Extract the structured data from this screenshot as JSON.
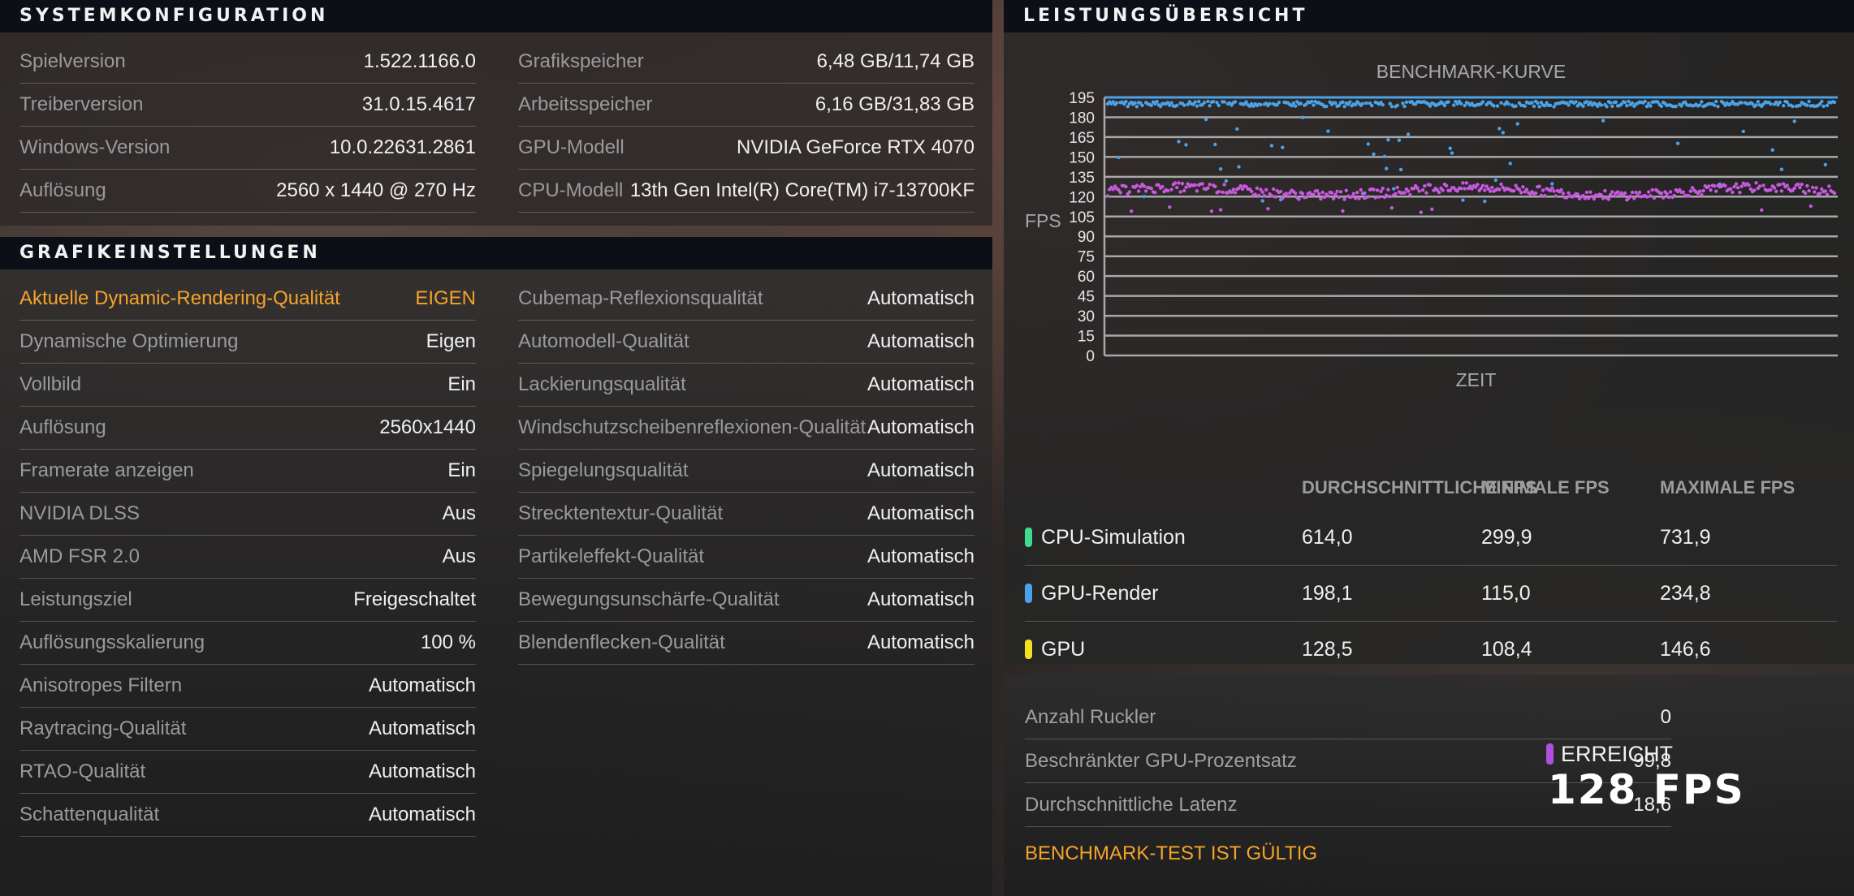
{
  "system": {
    "title": "SYSTEMKONFIGURATION",
    "left": [
      {
        "label": "Spielversion",
        "value": "1.522.1166.0"
      },
      {
        "label": "Treiberversion",
        "value": "31.0.15.4617"
      },
      {
        "label": "Windows-Version",
        "value": "10.0.22631.2861"
      },
      {
        "label": "Auflösung",
        "value": "2560 x 1440 @ 270 Hz"
      }
    ],
    "right": [
      {
        "label": "Grafikspeicher",
        "value": "6,48 GB/11,74 GB"
      },
      {
        "label": "Arbeitsspeicher",
        "value": "6,16 GB/31,83 GB"
      },
      {
        "label": "GPU-Modell",
        "value": "NVIDIA GeForce RTX 4070"
      },
      {
        "label": "CPU-Modell",
        "value": "13th Gen Intel(R) Core(TM) i7-13700KF"
      }
    ]
  },
  "graphics": {
    "title": "GRAFIKEINSTELLUNGEN",
    "left": [
      {
        "label": "Aktuelle Dynamic-Rendering-Qualität",
        "value": "EIGEN"
      },
      {
        "label": "Dynamische Optimierung",
        "value": "Eigen"
      },
      {
        "label": "Vollbild",
        "value": "Ein"
      },
      {
        "label": "Auflösung",
        "value": "2560x1440"
      },
      {
        "label": "Framerate anzeigen",
        "value": "Ein"
      },
      {
        "label": "NVIDIA DLSS",
        "value": "Aus"
      },
      {
        "label": "AMD FSR 2.0",
        "value": "Aus"
      },
      {
        "label": "Leistungsziel",
        "value": "Freigeschaltet"
      },
      {
        "label": "Auflösungsskalierung",
        "value": "100 %"
      },
      {
        "label": "Anisotropes Filtern",
        "value": "Automatisch"
      },
      {
        "label": "Raytracing-Qualität",
        "value": "Automatisch"
      },
      {
        "label": "RTAO-Qualität",
        "value": "Automatisch"
      },
      {
        "label": "Schattenqualität",
        "value": "Automatisch"
      }
    ],
    "right": [
      {
        "label": "Cubemap-Reflexionsqualität",
        "value": "Automatisch"
      },
      {
        "label": "Automodell-Qualität",
        "value": "Automatisch"
      },
      {
        "label": "Lackierungsqualität",
        "value": "Automatisch"
      },
      {
        "label": "Windschutzscheibenreflexionen-Qualität",
        "value": "Automatisch"
      },
      {
        "label": "Spiegelungsqualität",
        "value": "Automatisch"
      },
      {
        "label": "Strecktentextur-Qualität",
        "value": "Automatisch"
      },
      {
        "label": "Partikeleffekt-Qualität",
        "value": "Automatisch"
      },
      {
        "label": "Bewegungsunschärfe-Qualität",
        "value": "Automatisch"
      },
      {
        "label": "Blendenflecken-Qualität",
        "value": "Automatisch"
      }
    ]
  },
  "performance": {
    "title": "LEISTUNGSÜBERSICHT",
    "table": {
      "headers": [
        "DURCHSCHNITTLICHE FPS",
        "MINIMALE FPS",
        "MAXIMALE FPS"
      ],
      "rows": [
        {
          "name": "CPU-Simulation",
          "color": "#3fdc8e",
          "avg": "614,0",
          "min": "299,9",
          "max": "731,9"
        },
        {
          "name": "GPU-Render",
          "color": "#4aa3e8",
          "avg": "198,1",
          "min": "115,0",
          "max": "234,8"
        },
        {
          "name": "GPU",
          "color": "#f3e01e",
          "avg": "128,5",
          "min": "108,4",
          "max": "146,6"
        }
      ]
    }
  },
  "chart_data": {
    "type": "scatter",
    "title": "BENCHMARK-KURVE",
    "xlabel": "ZEIT",
    "ylabel": "FPS",
    "ylim": [
      0,
      195
    ],
    "yticks": [
      0,
      15,
      30,
      45,
      60,
      75,
      90,
      105,
      120,
      135,
      150,
      165,
      180,
      195
    ],
    "grid": true,
    "series": [
      {
        "color": "#4aa3e8",
        "points": 400,
        "approx_value": 192,
        "min_value": 115
      },
      {
        "color": "#c858e0",
        "points": 400,
        "approx_value": 124,
        "min_value": 108
      }
    ]
  },
  "stats": {
    "rows": [
      {
        "label": "Anzahl Ruckler",
        "value": "0"
      },
      {
        "label": "Beschränkter GPU-Prozentsatz",
        "value": "99,8"
      },
      {
        "label": "Durchschnittliche Latenz",
        "value": "18,6"
      }
    ],
    "valid_text": "BENCHMARK-TEST IST GÜLTIG",
    "achieved_label": "ERREICHT",
    "achieved_value": "128 FPS",
    "achieved_color": "#b24ee0"
  }
}
